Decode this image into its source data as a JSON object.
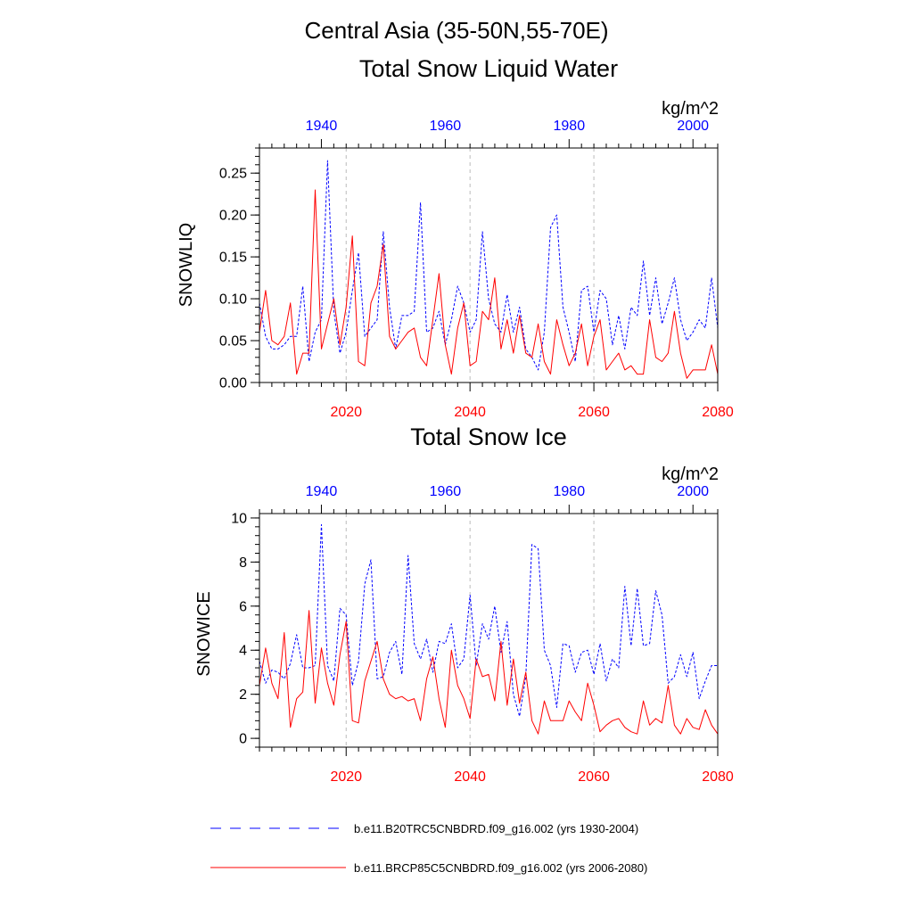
{
  "header": {
    "region": "Central Asia (35-50N,55-70E)"
  },
  "colors": {
    "historical": "#0000ff",
    "future": "#ff0000",
    "axis": "#000000",
    "grid": "#bbbbbb"
  },
  "chart_data": [
    {
      "type": "line",
      "title": "Total Snow Liquid Water",
      "ylabel": "SNOWLIQ",
      "units": "kg/m^2",
      "ylim": [
        0,
        0.28
      ],
      "yticks": [
        0.0,
        0.05,
        0.1,
        0.15,
        0.2,
        0.25
      ],
      "ytick_labels": [
        "0.00",
        "0.05",
        "0.10",
        "0.15",
        "0.20",
        "0.25"
      ],
      "x_bottom": {
        "range": [
          2006,
          2080
        ],
        "ticks": [
          "2020",
          "2040",
          "2060",
          "2080"
        ]
      },
      "x_top": {
        "range": [
          1930,
          2004
        ],
        "ticks": [
          "1940",
          "1960",
          "1980",
          "2000"
        ]
      },
      "grid": "vertical dashed at 2020, 2040, 2060",
      "series": [
        {
          "name": "b.e11.B20TRC5CNBDRD.f09_g16.002 (yrs 1930-2004)",
          "axis": "top",
          "style": "dashed",
          "color": "#0000ff",
          "x": [
            1930,
            1931,
            1932,
            1933,
            1934,
            1935,
            1936,
            1937,
            1938,
            1939,
            1940,
            1941,
            1942,
            1943,
            1944,
            1945,
            1946,
            1947,
            1948,
            1949,
            1950,
            1951,
            1952,
            1953,
            1954,
            1955,
            1956,
            1957,
            1958,
            1959,
            1960,
            1961,
            1962,
            1963,
            1964,
            1965,
            1966,
            1967,
            1968,
            1969,
            1970,
            1971,
            1972,
            1973,
            1974,
            1975,
            1976,
            1977,
            1978,
            1979,
            1980,
            1981,
            1982,
            1983,
            1984,
            1985,
            1986,
            1987,
            1988,
            1989,
            1990,
            1991,
            1992,
            1993,
            1994,
            1995,
            1996,
            1997,
            1998,
            1999,
            2000,
            2001,
            2002,
            2003,
            2004
          ],
          "values": [
            0.095,
            0.055,
            0.04,
            0.04,
            0.045,
            0.055,
            0.055,
            0.115,
            0.025,
            0.06,
            0.075,
            0.265,
            0.085,
            0.035,
            0.06,
            0.11,
            0.155,
            0.055,
            0.065,
            0.075,
            0.18,
            0.09,
            0.04,
            0.08,
            0.08,
            0.085,
            0.215,
            0.06,
            0.065,
            0.085,
            0.045,
            0.075,
            0.115,
            0.095,
            0.06,
            0.075,
            0.18,
            0.1,
            0.07,
            0.06,
            0.105,
            0.06,
            0.09,
            0.04,
            0.03,
            0.015,
            0.06,
            0.185,
            0.2,
            0.09,
            0.06,
            0.025,
            0.11,
            0.115,
            0.06,
            0.11,
            0.1,
            0.045,
            0.08,
            0.04,
            0.09,
            0.08,
            0.145,
            0.08,
            0.125,
            0.07,
            0.095,
            0.125,
            0.075,
            0.05,
            0.06,
            0.075,
            0.065,
            0.125,
            0.065
          ]
        },
        {
          "name": "b.e11.BRCP85C5CNBDRD.f09_g16.002 (yrs 2006-2080)",
          "axis": "bottom",
          "style": "solid",
          "color": "#ff0000",
          "x": [
            2006,
            2007,
            2008,
            2009,
            2010,
            2011,
            2012,
            2013,
            2014,
            2015,
            2016,
            2017,
            2018,
            2019,
            2020,
            2021,
            2022,
            2023,
            2024,
            2025,
            2026,
            2027,
            2028,
            2029,
            2030,
            2031,
            2032,
            2033,
            2034,
            2035,
            2036,
            2037,
            2038,
            2039,
            2040,
            2041,
            2042,
            2043,
            2044,
            2045,
            2046,
            2047,
            2048,
            2049,
            2050,
            2051,
            2052,
            2053,
            2054,
            2055,
            2056,
            2057,
            2058,
            2059,
            2060,
            2061,
            2062,
            2063,
            2064,
            2065,
            2066,
            2067,
            2068,
            2069,
            2070,
            2071,
            2072,
            2073,
            2074,
            2075,
            2076,
            2077,
            2078,
            2079,
            2080
          ],
          "values": [
            0.06,
            0.11,
            0.05,
            0.045,
            0.055,
            0.095,
            0.01,
            0.035,
            0.035,
            0.23,
            0.04,
            0.07,
            0.1,
            0.045,
            0.09,
            0.175,
            0.025,
            0.02,
            0.095,
            0.115,
            0.165,
            0.055,
            0.04,
            0.05,
            0.06,
            0.065,
            0.03,
            0.02,
            0.075,
            0.13,
            0.045,
            0.01,
            0.065,
            0.095,
            0.02,
            0.025,
            0.085,
            0.075,
            0.125,
            0.04,
            0.075,
            0.035,
            0.08,
            0.035,
            0.03,
            0.07,
            0.025,
            0.01,
            0.075,
            0.045,
            0.02,
            0.035,
            0.07,
            0.02,
            0.055,
            0.075,
            0.015,
            0.025,
            0.035,
            0.015,
            0.02,
            0.01,
            0.01,
            0.075,
            0.03,
            0.025,
            0.035,
            0.085,
            0.035,
            0.005,
            0.015,
            0.015,
            0.015,
            0.045,
            0.01
          ]
        }
      ]
    },
    {
      "type": "line",
      "title": "Total Snow Ice",
      "ylabel": "SNOWICE",
      "units": "kg/m^2",
      "ylim": [
        -0.4,
        10.2
      ],
      "yticks": [
        0,
        2,
        4,
        6,
        8,
        10
      ],
      "ytick_labels": [
        "0",
        "2",
        "4",
        "6",
        "8",
        "10"
      ],
      "x_bottom": {
        "range": [
          2006,
          2080
        ],
        "ticks": [
          "2020",
          "2040",
          "2060",
          "2080"
        ]
      },
      "x_top": {
        "range": [
          1930,
          2004
        ],
        "ticks": [
          "1940",
          "1960",
          "1980",
          "2000"
        ]
      },
      "grid": "vertical dashed at 2020, 2040, 2060",
      "series": [
        {
          "name": "b.e11.B20TRC5CNBDRD.f09_g16.002 (yrs 1930-2004)",
          "axis": "top",
          "style": "dashed",
          "color": "#0000ff",
          "x": [
            1930,
            1931,
            1932,
            1933,
            1934,
            1935,
            1936,
            1937,
            1938,
            1939,
            1940,
            1941,
            1942,
            1943,
            1944,
            1945,
            1946,
            1947,
            1948,
            1949,
            1950,
            1951,
            1952,
            1953,
            1954,
            1955,
            1956,
            1957,
            1958,
            1959,
            1960,
            1961,
            1962,
            1963,
            1964,
            1965,
            1966,
            1967,
            1968,
            1969,
            1970,
            1971,
            1972,
            1973,
            1974,
            1975,
            1976,
            1977,
            1978,
            1979,
            1980,
            1981,
            1982,
            1983,
            1984,
            1985,
            1986,
            1987,
            1988,
            1989,
            1990,
            1991,
            1992,
            1993,
            1994,
            1995,
            1996,
            1997,
            1998,
            1999,
            2000,
            2001,
            2002,
            2003,
            2004
          ],
          "values": [
            3.5,
            2.5,
            3.1,
            3.0,
            2.7,
            3.4,
            4.7,
            3.2,
            3.2,
            3.3,
            9.7,
            3.3,
            2.6,
            5.9,
            5.6,
            2.4,
            3.5,
            7.0,
            8.1,
            2.7,
            2.8,
            3.9,
            4.4,
            2.9,
            8.3,
            4.3,
            3.6,
            4.5,
            3.0,
            4.4,
            4.3,
            5.2,
            3.2,
            3.6,
            6.5,
            3.3,
            5.2,
            4.5,
            6.0,
            3.9,
            5.3,
            2.0,
            1.0,
            2.8,
            8.8,
            8.6,
            4.0,
            3.3,
            1.4,
            4.3,
            4.2,
            3.0,
            3.9,
            4.0,
            2.9,
            4.3,
            2.6,
            3.6,
            3.2,
            6.9,
            4.2,
            6.8,
            4.2,
            4.3,
            6.7,
            5.6,
            2.5,
            2.8,
            3.8,
            2.8,
            3.9,
            1.8,
            2.6,
            3.3,
            3.3
          ]
        },
        {
          "name": "b.e11.BRCP85C5CNBDRD.f09_g16.002 (yrs 2006-2080)",
          "axis": "bottom",
          "style": "solid",
          "color": "#ff0000",
          "x": [
            2006,
            2007,
            2008,
            2009,
            2010,
            2011,
            2012,
            2013,
            2014,
            2015,
            2016,
            2017,
            2018,
            2019,
            2020,
            2021,
            2022,
            2023,
            2024,
            2025,
            2026,
            2027,
            2028,
            2029,
            2030,
            2031,
            2032,
            2033,
            2034,
            2035,
            2036,
            2037,
            2038,
            2039,
            2040,
            2041,
            2042,
            2043,
            2044,
            2045,
            2046,
            2047,
            2048,
            2049,
            2050,
            2051,
            2052,
            2053,
            2054,
            2055,
            2056,
            2057,
            2058,
            2059,
            2060,
            2061,
            2062,
            2063,
            2064,
            2065,
            2066,
            2067,
            2068,
            2069,
            2070,
            2071,
            2072,
            2073,
            2074,
            2075,
            2076,
            2077,
            2078,
            2079,
            2080
          ],
          "values": [
            2.4,
            4.1,
            2.5,
            1.8,
            4.8,
            0.5,
            1.8,
            2.1,
            5.8,
            1.6,
            4.1,
            2.5,
            1.5,
            3.8,
            5.3,
            0.8,
            0.7,
            2.6,
            3.5,
            4.4,
            2.7,
            2.0,
            1.8,
            1.9,
            1.7,
            1.8,
            0.8,
            2.7,
            3.7,
            1.8,
            0.5,
            4.0,
            2.4,
            1.8,
            0.9,
            3.6,
            2.8,
            2.9,
            1.7,
            4.4,
            1.5,
            3.6,
            1.6,
            3.0,
            0.8,
            0.2,
            1.7,
            0.8,
            0.8,
            0.8,
            1.7,
            1.2,
            0.8,
            2.5,
            1.5,
            0.3,
            0.6,
            0.8,
            0.9,
            0.5,
            0.3,
            0.2,
            1.7,
            0.6,
            0.9,
            0.7,
            2.4,
            0.6,
            0.2,
            0.9,
            0.5,
            0.4,
            1.3,
            0.6,
            0.2
          ]
        }
      ]
    }
  ]
}
